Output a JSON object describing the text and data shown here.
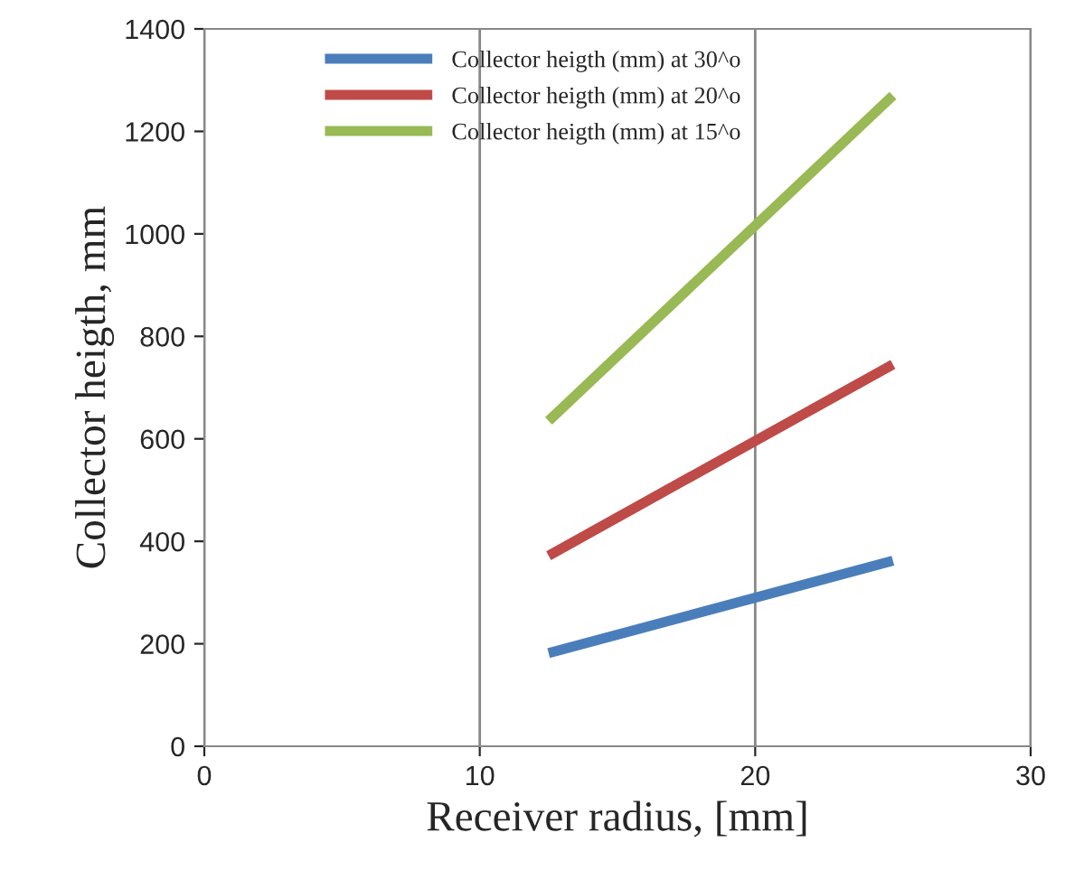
{
  "chart_data": {
    "type": "line",
    "xlabel": "Receiver radius, [mm]",
    "ylabel": "Collector heigth, mm",
    "xlim": [
      0,
      30
    ],
    "xticks": [
      0,
      10,
      20,
      30
    ],
    "ylim": [
      0,
      1400
    ],
    "yticks": [
      0,
      200,
      400,
      600,
      800,
      1000,
      1200,
      1400
    ],
    "grid": "x",
    "legend": "top left",
    "x": [
      12.5,
      25
    ],
    "series": [
      {
        "name": "Collector heigth (mm) at 30^o",
        "color": "#4a7ebb",
        "values": [
          182,
          362
        ]
      },
      {
        "name": "Collector heigth (mm) at 20^o",
        "color": "#be4b48",
        "values": [
          372,
          745
        ]
      },
      {
        "name": "Collector heigth (mm) at 15^o",
        "color": "#98b954",
        "values": [
          635,
          1270
        ]
      }
    ]
  }
}
